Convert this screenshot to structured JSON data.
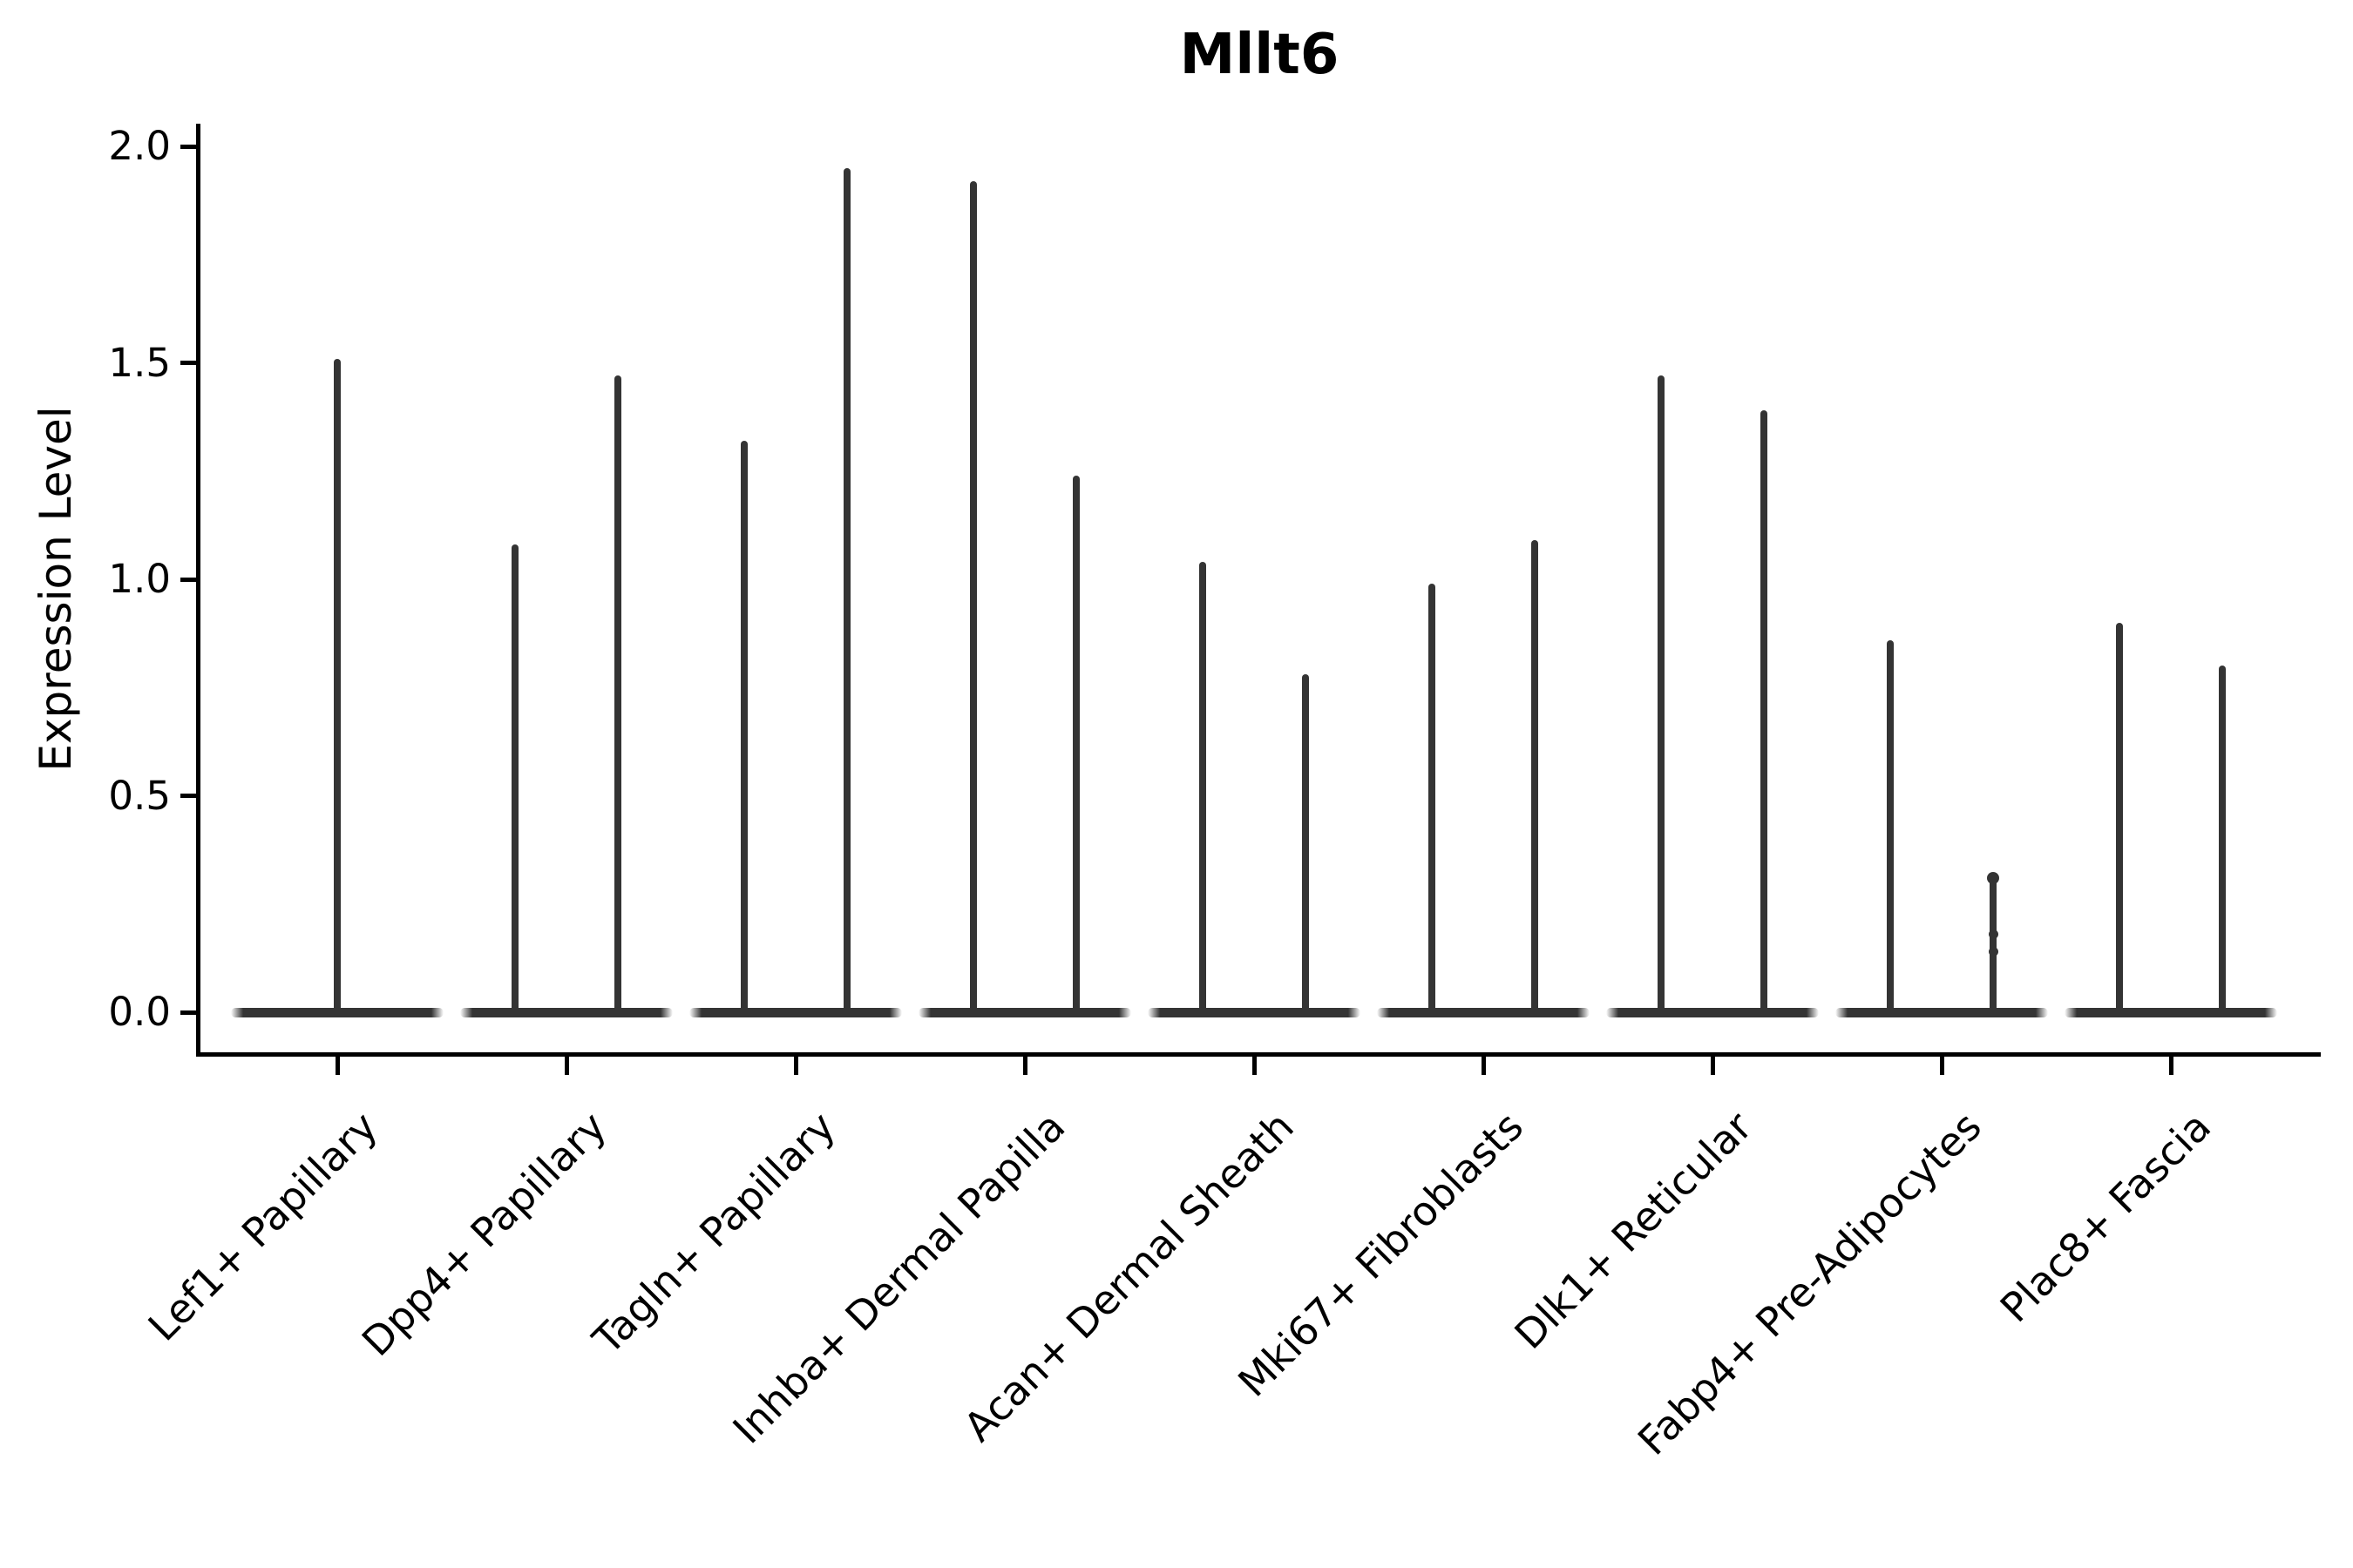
{
  "title": "Mllt6",
  "axes": {
    "ylabel": "Expression Level",
    "xlabel": ""
  },
  "chart_data": {
    "type": "violin",
    "title": "Mllt6",
    "xlabel": "",
    "ylabel": "Expression Level",
    "ylim": [
      0,
      2.05
    ],
    "yticks": [
      0.0,
      0.5,
      1.0,
      1.5,
      2.0
    ],
    "grid": false,
    "legend": "none",
    "style_note": "Seurat/scanpy-style stacked violin: density mass concentrated at 0 giving a wide flat base, with a thin vertical spike up to the maximum expression value; most categories show two spikes (two violins side by side), first category shows a single centered spike",
    "categories": [
      "Lef1+ Papillary",
      "Dpp4+ Papillary",
      "Tagln+ Papillary",
      "Inhba+ Dermal Papilla",
      "Acan+ Dermal Sheath",
      "Mki67+ Fibroblasts",
      "Dlk1+ Reticular",
      "Fabp4+ Pre-Adipocytes",
      "Plac8+ Fascia"
    ],
    "violins": [
      {
        "category": "Lef1+ Papillary",
        "baseline_value": 0.0,
        "spikes": [
          {
            "pos": "center",
            "max": 1.51
          }
        ]
      },
      {
        "category": "Dpp4+ Papillary",
        "baseline_value": 0.0,
        "spikes": [
          {
            "pos": "left",
            "max": 1.08
          },
          {
            "pos": "right",
            "max": 1.47
          }
        ]
      },
      {
        "category": "Tagln+ Papillary",
        "baseline_value": 0.0,
        "spikes": [
          {
            "pos": "left",
            "max": 1.32
          },
          {
            "pos": "right",
            "max": 1.95
          }
        ]
      },
      {
        "category": "Inhba+ Dermal Papilla",
        "baseline_value": 0.0,
        "spikes": [
          {
            "pos": "left",
            "max": 1.92
          },
          {
            "pos": "right",
            "max": 1.24
          }
        ]
      },
      {
        "category": "Acan+ Dermal Sheath",
        "baseline_value": 0.0,
        "spikes": [
          {
            "pos": "left",
            "max": 1.04
          },
          {
            "pos": "right",
            "max": 0.78
          }
        ]
      },
      {
        "category": "Mki67+ Fibroblasts",
        "baseline_value": 0.0,
        "spikes": [
          {
            "pos": "left",
            "max": 0.99
          },
          {
            "pos": "right",
            "max": 1.09
          }
        ]
      },
      {
        "category": "Dlk1+ Reticular",
        "baseline_value": 0.0,
        "spikes": [
          {
            "pos": "left",
            "max": 1.47
          },
          {
            "pos": "right",
            "max": 1.39
          }
        ]
      },
      {
        "category": "Fabp4+ Pre-Adipocytes",
        "baseline_value": 0.0,
        "spikes": [
          {
            "pos": "left",
            "max": 0.86
          },
          {
            "pos": "right",
            "max": 0.31,
            "points": [
              0.31,
              0.18,
              0.14
            ]
          }
        ]
      },
      {
        "category": "Plac8+ Fascia",
        "baseline_value": 0.0,
        "spikes": [
          {
            "pos": "left",
            "max": 0.9
          },
          {
            "pos": "right",
            "max": 0.8
          }
        ]
      }
    ],
    "colors": {
      "violin": "#343434",
      "axis": "#000000",
      "text": "#000000",
      "background": "#ffffff"
    }
  }
}
